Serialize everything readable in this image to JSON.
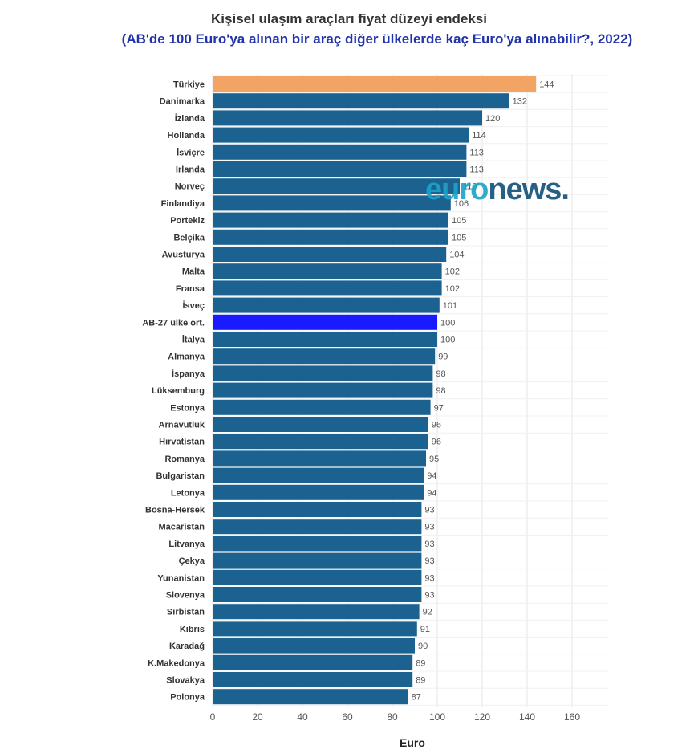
{
  "chart_data": {
    "type": "bar",
    "orientation": "horizontal",
    "title": "Kişisel ulaşım araçları fiyat düzeyi endeksi",
    "subtitle": "(AB'de 100 Euro'ya alınan bir araç diğer ülkelerde kaç Euro'ya alınabilir?, 2022)",
    "xlabel": "Euro",
    "xlim": [
      0,
      175
    ],
    "xticks": [
      0,
      20,
      40,
      60,
      80,
      100,
      120,
      140,
      160
    ],
    "grid": true,
    "categories": [
      "Türkiye",
      "Danimarka",
      "İzlanda",
      "Hollanda",
      "İsviçre",
      "İrlanda",
      "Norveç",
      "Finlandiya",
      "Portekiz",
      "Belçika",
      "Avusturya",
      "Malta",
      "Fransa",
      "İsveç",
      "AB-27 ülke ort.",
      "İtalya",
      "Almanya",
      "İspanya",
      "Lüksemburg",
      "Estonya",
      "Arnavutluk",
      "Hırvatistan",
      "Romanya",
      "Bulgaristan",
      "Letonya",
      "Bosna-Hersek",
      "Macaristan",
      "Litvanya",
      "Çekya",
      "Yunanistan",
      "Slovenya",
      "Sırbistan",
      "Kıbrıs",
      "Karadağ",
      "K.Makedonya",
      "Slovakya",
      "Polonya"
    ],
    "values": [
      144,
      132,
      120,
      114,
      113,
      113,
      110,
      106,
      105,
      105,
      104,
      102,
      102,
      101,
      100,
      100,
      99,
      98,
      98,
      97,
      96,
      96,
      95,
      94,
      94,
      93,
      93,
      93,
      93,
      93,
      93,
      92,
      91,
      90,
      89,
      89,
      87
    ],
    "colors": {
      "default": "#1b6290",
      "Türkiye": "#f2a465",
      "AB-27 ülke ort.": "#1a1aff"
    }
  },
  "watermark": {
    "text_prefix": "euro",
    "text_suffix": "news.",
    "color_prefix": "#1aa3c9",
    "color_suffix": "#0f4f78"
  }
}
